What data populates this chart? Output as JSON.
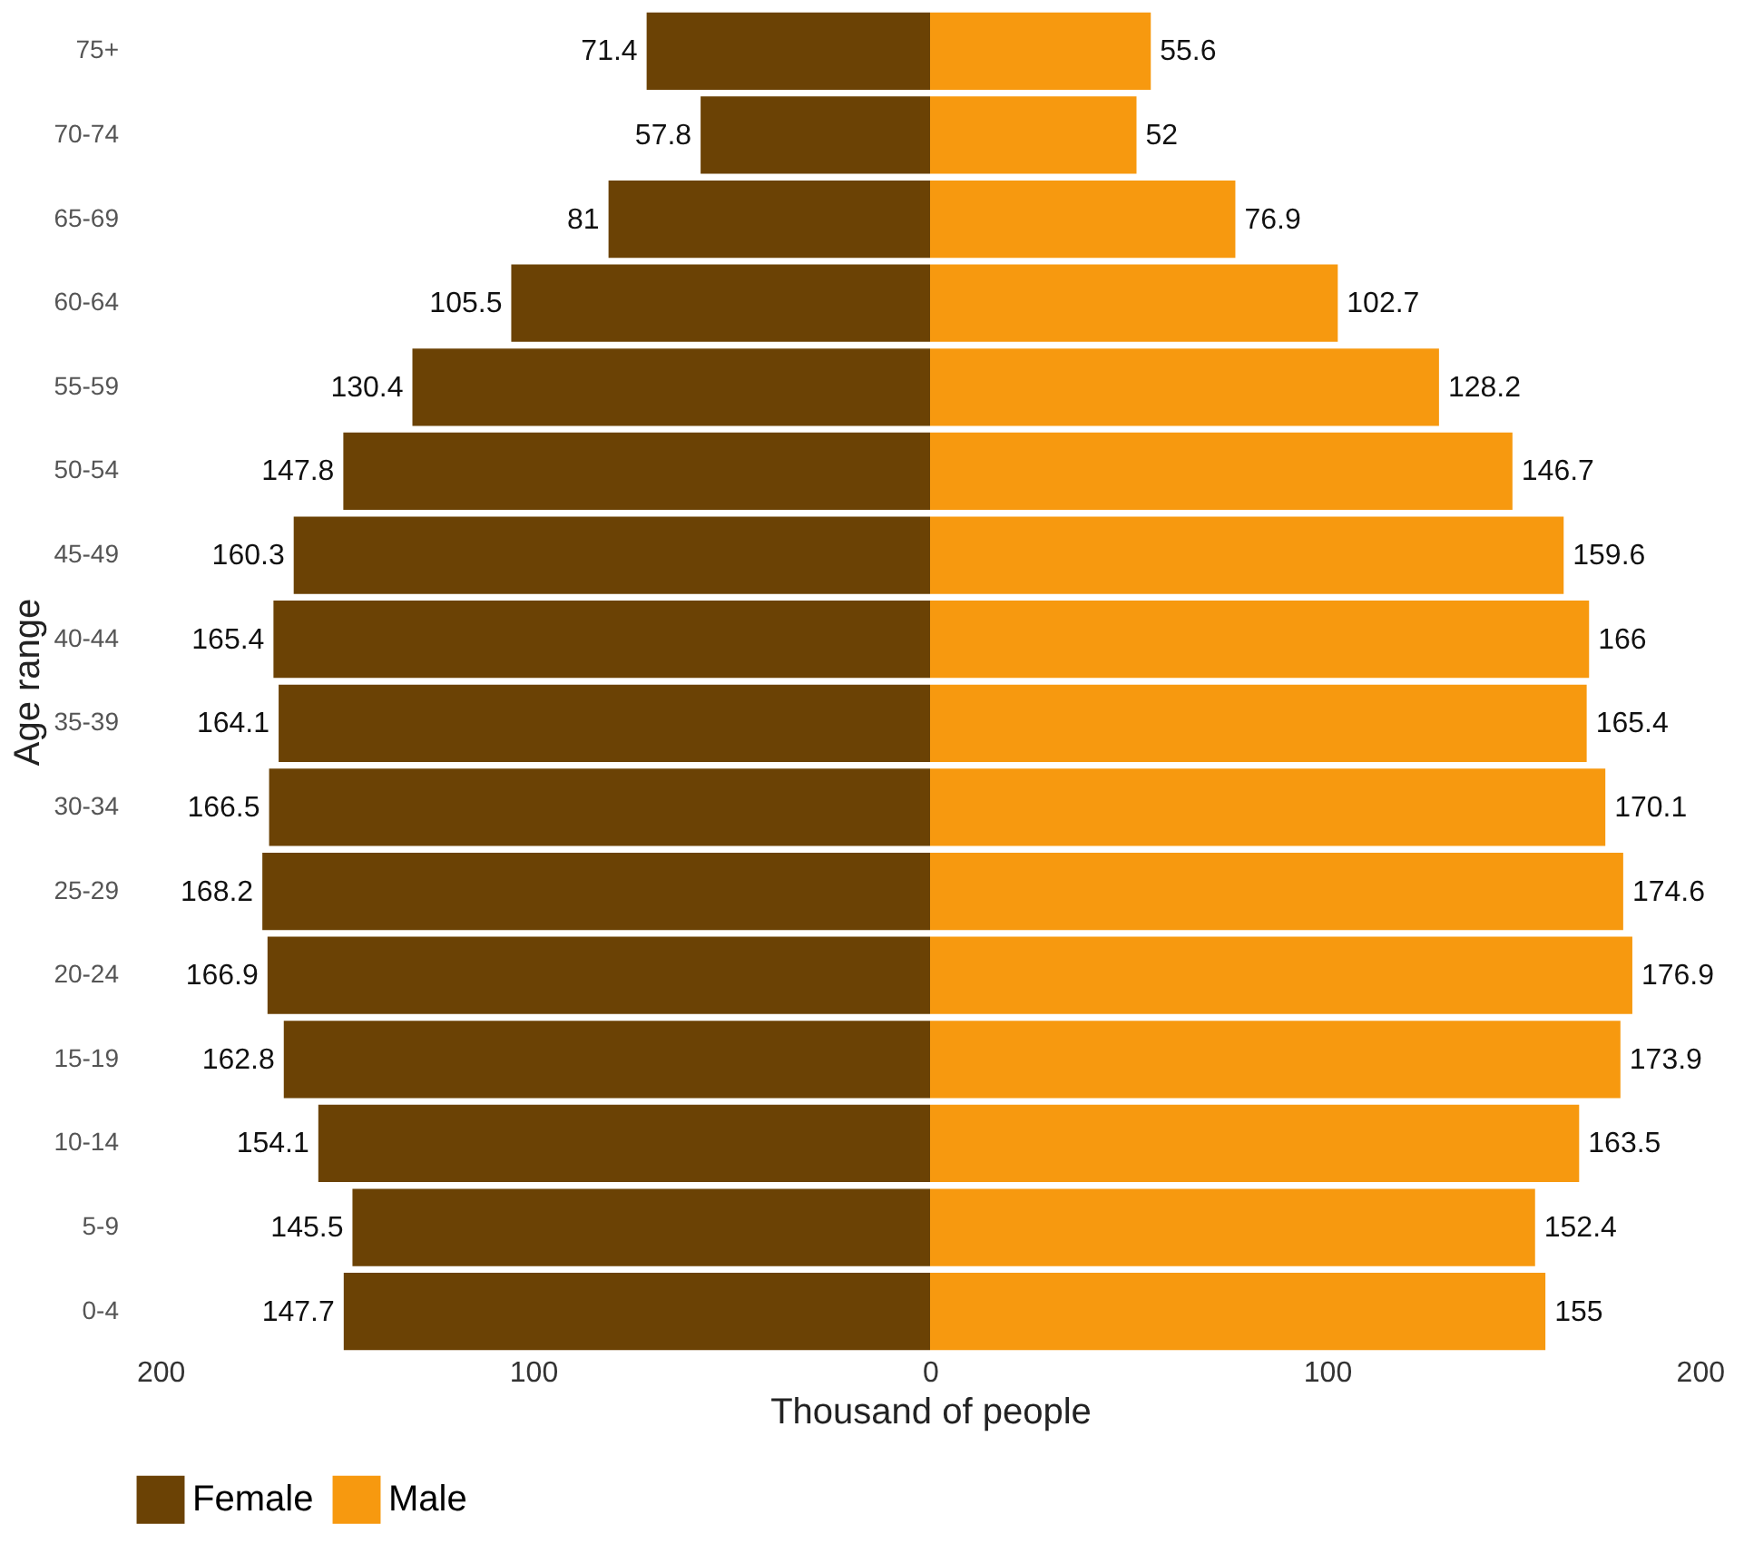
{
  "chart_data": {
    "type": "bar",
    "orientation": "horizontal",
    "xlabel": "Thousand of people",
    "ylabel": "Age range",
    "categories": [
      "75+",
      "70-74",
      "65-69",
      "60-64",
      "55-59",
      "50-54",
      "45-49",
      "40-44",
      "35-39",
      "30-34",
      "25-29",
      "20-24",
      "15-19",
      "10-14",
      "5-9",
      "0-4"
    ],
    "series": [
      {
        "name": "Female",
        "color": "#6b4205",
        "values": [
          71.4,
          57.8,
          81,
          105.5,
          130.4,
          147.8,
          160.3,
          165.4,
          164.1,
          166.5,
          168.2,
          166.9,
          162.8,
          154.1,
          145.5,
          147.7
        ],
        "base": [
          -71.4,
          -57.8,
          -81,
          -105.5,
          -130.4,
          -147.8,
          -160.3,
          -165.4,
          -164.1,
          -166.5,
          -168.2,
          -166.9,
          -162.8,
          -154.1,
          -145.5,
          -147.7
        ]
      },
      {
        "name": "Male",
        "color": "#f7990f",
        "values": [
          55.6,
          52,
          76.9,
          102.7,
          128.2,
          146.7,
          159.6,
          166,
          165.4,
          170.1,
          174.6,
          176.9,
          173.9,
          163.5,
          152.4,
          155
        ],
        "base": [
          0,
          0,
          0,
          0,
          0,
          0,
          0,
          0,
          0,
          0,
          0,
          0,
          0,
          0,
          0,
          0
        ]
      }
    ],
    "data_labels": true,
    "xlim": [
      -200,
      200
    ],
    "xticks": [
      {
        "value": -200,
        "label": "200"
      },
      {
        "value": -100,
        "label": "100"
      },
      0,
      100,
      200
    ],
    "grid": false,
    "legend": "bottom"
  }
}
